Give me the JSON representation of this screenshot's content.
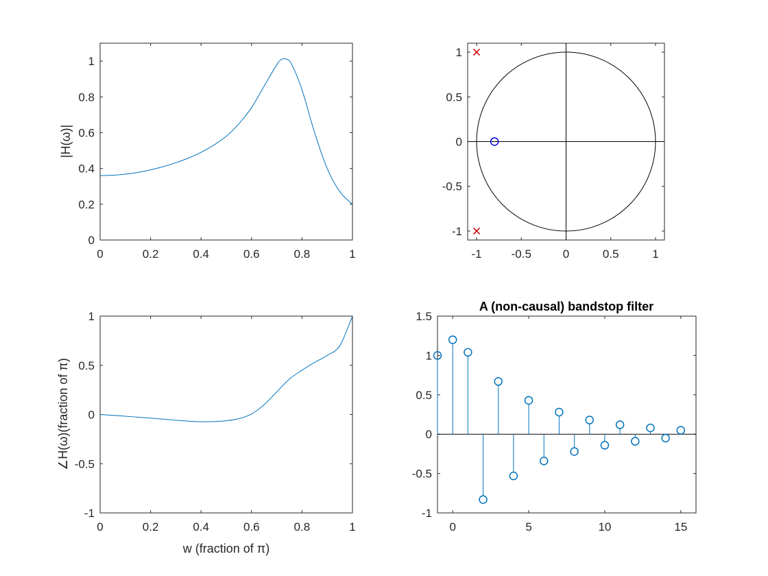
{
  "colors": {
    "series": "#0072BD",
    "axes": "#262626",
    "pole": "#D00000",
    "zero": "#0000E0",
    "circle": "#000000"
  },
  "chart_data": [
    {
      "id": "magnitude",
      "type": "line",
      "title": "",
      "xlabel": "",
      "ylabel": "|H(ω)|",
      "xlim": [
        0,
        1
      ],
      "ylim": [
        0,
        1.1
      ],
      "xticks": [
        0,
        0.2,
        0.4,
        0.6,
        0.8,
        1
      ],
      "xtick_labels": [
        "0",
        "0.2",
        "0.4",
        "0.6",
        "0.8",
        "1"
      ],
      "yticks": [
        0,
        0.2,
        0.4,
        0.6,
        0.8,
        1
      ],
      "ytick_labels": [
        "0",
        "0.2",
        "0.4",
        "0.6",
        "0.8",
        "1"
      ],
      "x": [
        0,
        0.05,
        0.1,
        0.15,
        0.2,
        0.25,
        0.3,
        0.35,
        0.4,
        0.45,
        0.5,
        0.55,
        0.6,
        0.65,
        0.7,
        0.72,
        0.74,
        0.76,
        0.8,
        0.85,
        0.9,
        0.95,
        1.0
      ],
      "y": [
        0.36,
        0.362,
        0.368,
        0.378,
        0.392,
        0.41,
        0.432,
        0.458,
        0.49,
        0.53,
        0.58,
        0.65,
        0.74,
        0.86,
        0.98,
        1.01,
        1.01,
        0.98,
        0.84,
        0.6,
        0.4,
        0.27,
        0.2
      ]
    },
    {
      "id": "pole-zero",
      "type": "scatter",
      "title": "",
      "xlabel": "",
      "ylabel": "",
      "xlim": [
        -1.1,
        1.1
      ],
      "ylim": [
        -1.1,
        1.1
      ],
      "xticks": [
        -1,
        -0.5,
        0,
        0.5,
        1
      ],
      "xtick_labels": [
        "-1",
        "-0.5",
        "0",
        "0.5",
        "1"
      ],
      "yticks": [
        -1,
        -0.5,
        0,
        0.5,
        1
      ],
      "ytick_labels": [
        "-1",
        "-0.5",
        "0",
        "0.5",
        "1"
      ],
      "unit_circle": true,
      "poles": [
        {
          "x": -1,
          "y": 1
        },
        {
          "x": -1,
          "y": -1
        }
      ],
      "zeros": [
        {
          "x": -0.8,
          "y": 0
        }
      ]
    },
    {
      "id": "phase",
      "type": "line",
      "title": "",
      "xlabel": "w (fraction of π)",
      "ylabel": "∠H(ω)(fraction of π)",
      "xlim": [
        0,
        1
      ],
      "ylim": [
        -1,
        1
      ],
      "xticks": [
        0,
        0.2,
        0.4,
        0.6,
        0.8,
        1
      ],
      "xtick_labels": [
        "0",
        "0.2",
        "0.4",
        "0.6",
        "0.8",
        "1"
      ],
      "yticks": [
        -1,
        -0.5,
        0,
        0.5,
        1
      ],
      "ytick_labels": [
        "-1",
        "-0.5",
        "0",
        "0.5",
        "1"
      ],
      "x": [
        0,
        0.05,
        0.1,
        0.15,
        0.2,
        0.25,
        0.3,
        0.35,
        0.4,
        0.45,
        0.5,
        0.55,
        0.6,
        0.65,
        0.7,
        0.75,
        0.8,
        0.85,
        0.9,
        0.95,
        1.0
      ],
      "y": [
        0.0,
        -0.008,
        -0.017,
        -0.027,
        -0.037,
        -0.047,
        -0.058,
        -0.068,
        -0.073,
        -0.072,
        -0.064,
        -0.042,
        0.005,
        0.1,
        0.23,
        0.36,
        0.45,
        0.53,
        0.6,
        0.7,
        1.0
      ]
    },
    {
      "id": "impulse",
      "type": "stem",
      "title": "A (non-causal) bandstop filter",
      "xlabel": "",
      "ylabel": "",
      "xlim": [
        -1,
        16
      ],
      "ylim": [
        -1,
        1.5
      ],
      "xticks": [
        0,
        5,
        10,
        15
      ],
      "xtick_labels": [
        "0",
        "5",
        "10",
        "15"
      ],
      "yticks": [
        -1,
        -0.5,
        0,
        0.5,
        1,
        1.5
      ],
      "ytick_labels": [
        "-1",
        "-0.5",
        "0",
        "0.5",
        "1",
        "1.5"
      ],
      "x": [
        -1,
        0,
        1,
        2,
        3,
        4,
        5,
        6,
        7,
        8,
        9,
        10,
        11,
        12,
        13,
        14,
        15
      ],
      "y": [
        1.0,
        1.2,
        1.04,
        -0.83,
        0.67,
        -0.53,
        0.43,
        -0.34,
        0.28,
        -0.22,
        0.18,
        -0.14,
        0.12,
        -0.09,
        0.08,
        -0.05,
        0.05
      ]
    }
  ]
}
